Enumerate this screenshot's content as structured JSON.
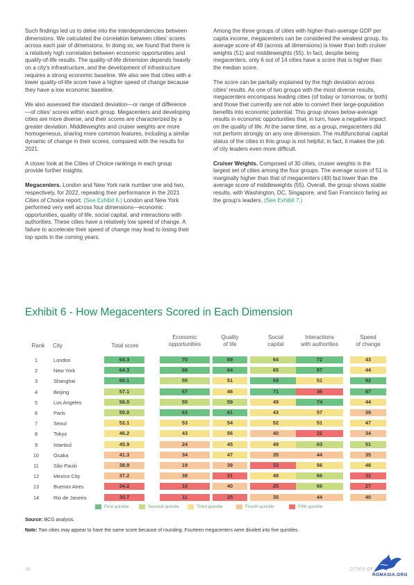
{
  "left_column": [
    {
      "lead": "",
      "text": "Such findings led us to delve into the interdependencies between dimensions. We calculated the correlation between cities' scores across each pair of dimensions. In doing so, we found that there is a relatively high correlation between economic opportunities and quality-of-life results. The quality-of-life dimension depends heavily on a city's infrastructure, and the development of infrastructure requires a strong economic baseline. We also see that cities with a lower quality-of-life score have a higher speed of change because they have a low economic baseline."
    },
    {
      "lead": "",
      "text": "We also assessed the standard deviation—or range of difference—of cities' scores within each group. Megacenters and developing cities are more diverse, and their scores are characterized by a greater deviation. Middleweights and cruiser weights are more homogeneous, sharing more common features, including a similar dynamic of change in their scores, compared with the results for 2021."
    },
    {
      "lead": "",
      "text": "A closer look at the Cities of Choice rankings in each group provide further insights."
    },
    {
      "lead": "Megacenters.",
      "pre": " London and New York rank number one and two, respectively, for 2022, repeating their performance in the 2021 ",
      "italic": "Cities of Choice",
      "mid": " report. ",
      "link": "(See Exhibit 6.)",
      "post": " London and New York performed very well across four dimensions—economic opportunities, quality of life, social capital, and interactions with authorities. These cities have a relatively low speed of change. A failure to accelerate their speed of change may lead to losing their top spots in the coming years."
    }
  ],
  "right_column": [
    {
      "text": "Among the three groups of cities with higher-than-average GDP per capita income, megacenters can be considered the weakest group. Its average score of 49 (across all dimensions) is lower than both cruiser weights (51) and middleweights (55). In fact, despite being megacenters, only 6 out of 14 cities have a score that is higher than the median score."
    },
    {
      "text": "The score can be partially explained by the high deviation across cities' results. As one of two groups with the most diverse results, megacenters encompass leading cities (of today or tomorrow, or both) and those that currently are not able to convert their large-population benefits into economic potential. This group shows below-average results in economic opportunities that, in turn, have a negative impact on the quality of life. At the same time, as a group, megacenters did not perform strongly on any one dimension. The multifunctional capital status of the cities in this group is not helpful; in fact, it makes the job of city leaders even more difficult."
    },
    {
      "lead": "Cruiser Weights.",
      "pre": " Composed of 30 cities, cruiser weights is the largest set of cities among the four groups. The average score of 51 is marginally higher than that of megacenters (49) but lower than the average score of middleweights (55). Overall, the group shows stable results, with Washington, DC, Singapore, and San Francisco faring as the group's leaders. ",
      "link": "(See Exhibit 7.)"
    }
  ],
  "exhibit": {
    "title": "Exhibit 6 - How Megacenters Scored in Each Dimension",
    "headers": {
      "rank": "Rank",
      "city": "City",
      "total": "Total score",
      "econ": "Economic\nopportunities",
      "qol": "Quality\nof life",
      "social": "Social\ncapital",
      "inter": "Interactions\nwith authorities",
      "speed": "Speed\nof change"
    },
    "colors": {
      "first": "#6cc283",
      "second": "#c8dc84",
      "third": "#f7e28c",
      "fourth": "#f7c79b",
      "fifth": "#ef6f6f"
    },
    "rows": [
      {
        "rank": "1",
        "city": "London",
        "total": [
          "64.3",
          "first"
        ],
        "econ": [
          "70",
          "first"
        ],
        "qol": [
          "69",
          "first"
        ],
        "social": [
          "64",
          "second"
        ],
        "inter": [
          "72",
          "first"
        ],
        "speed": [
          "43",
          "third"
        ]
      },
      {
        "rank": "2",
        "city": "New York",
        "total": [
          "64.3",
          "first"
        ],
        "econ": [
          "68",
          "first"
        ],
        "qol": [
          "64",
          "first"
        ],
        "social": [
          "65",
          "second"
        ],
        "inter": [
          "97",
          "first"
        ],
        "speed": [
          "44",
          "third"
        ]
      },
      {
        "rank": "3",
        "city": "Shanghai",
        "total": [
          "60.1",
          "first"
        ],
        "econ": [
          "55",
          "second"
        ],
        "qol": [
          "51",
          "third"
        ],
        "social": [
          "69",
          "first"
        ],
        "inter": [
          "51",
          "third"
        ],
        "speed": [
          "92",
          "first"
        ]
      },
      {
        "rank": "4",
        "city": "Beijing",
        "total": [
          "57.1",
          "second"
        ],
        "econ": [
          "67",
          "first"
        ],
        "qol": [
          "46",
          "third"
        ],
        "social": [
          "71",
          "first"
        ],
        "inter": [
          "36",
          "fifth"
        ],
        "speed": [
          "87",
          "first"
        ]
      },
      {
        "rank": "5",
        "city": "Los Angeles",
        "total": [
          "56.0",
          "second"
        ],
        "econ": [
          "55",
          "second"
        ],
        "qol": [
          "59",
          "second"
        ],
        "social": [
          "49",
          "third"
        ],
        "inter": [
          "74",
          "first"
        ],
        "speed": [
          "44",
          "third"
        ]
      },
      {
        "rank": "6",
        "city": "Paris",
        "total": [
          "55.0",
          "second"
        ],
        "econ": [
          "63",
          "first"
        ],
        "qol": [
          "61",
          "first"
        ],
        "social": [
          "43",
          "third"
        ],
        "inter": [
          "57",
          "third"
        ],
        "speed": [
          "39",
          "fourth"
        ]
      },
      {
        "rank": "7",
        "city": "Seoul",
        "total": [
          "52.1",
          "third"
        ],
        "econ": [
          "53",
          "third"
        ],
        "qol": [
          "54",
          "third"
        ],
        "social": [
          "52",
          "third"
        ],
        "inter": [
          "51",
          "third"
        ],
        "speed": [
          "47",
          "third"
        ]
      },
      {
        "rank": "8",
        "city": "Tokyo",
        "total": [
          "46.2",
          "third"
        ],
        "econ": [
          "43",
          "third"
        ],
        "qol": [
          "56",
          "third"
        ],
        "social": [
          "40",
          "fourth"
        ],
        "inter": [
          "22",
          "fifth"
        ],
        "speed": [
          "34",
          "fourth"
        ]
      },
      {
        "rank": "9",
        "city": "Istanbul",
        "total": [
          "45.9",
          "third"
        ],
        "econ": [
          "24",
          "fourth"
        ],
        "qol": [
          "45",
          "third"
        ],
        "social": [
          "49",
          "third"
        ],
        "inter": [
          "63",
          "second"
        ],
        "speed": [
          "51",
          "second"
        ]
      },
      {
        "rank": "10",
        "city": "Osaka",
        "total": [
          "41.3",
          "fourth"
        ],
        "econ": [
          "34",
          "fourth"
        ],
        "qol": [
          "47",
          "third"
        ],
        "social": [
          "35",
          "fourth"
        ],
        "inter": [
          "44",
          "fourth"
        ],
        "speed": [
          "35",
          "fourth"
        ]
      },
      {
        "rank": "11",
        "city": "São Paulo",
        "total": [
          "38.9",
          "fourth"
        ],
        "econ": [
          "19",
          "fourth"
        ],
        "qol": [
          "39",
          "fourth"
        ],
        "social": [
          "33",
          "fifth"
        ],
        "inter": [
          "56",
          "third"
        ],
        "speed": [
          "48",
          "third"
        ]
      },
      {
        "rank": "12",
        "city": "Mexico City",
        "total": [
          "37.2",
          "fourth"
        ],
        "econ": [
          "38",
          "fourth"
        ],
        "qol": [
          "31",
          "fifth"
        ],
        "social": [
          "48",
          "third"
        ],
        "inter": [
          "66",
          "second"
        ],
        "speed": [
          "32",
          "fifth"
        ]
      },
      {
        "rank": "13",
        "city": "Buenos Aires",
        "total": [
          "34.2",
          "fifth"
        ],
        "econ": [
          "10",
          "fifth"
        ],
        "qol": [
          "40",
          "fourth"
        ],
        "social": [
          "25",
          "fifth"
        ],
        "inter": [
          "66",
          "second"
        ],
        "speed": [
          "27",
          "fifth"
        ]
      },
      {
        "rank": "14",
        "city": "Rio de Janeiro",
        "total": [
          "30.7",
          "fifth"
        ],
        "econ": [
          "11",
          "fifth"
        ],
        "qol": [
          "25",
          "fifth"
        ],
        "social": [
          "35",
          "fourth"
        ],
        "inter": [
          "44",
          "fourth"
        ],
        "speed": [
          "40",
          "fourth"
        ]
      }
    ],
    "legend": [
      {
        "key": "first",
        "label": "First quintile"
      },
      {
        "key": "second",
        "label": "Second quintile"
      },
      {
        "key": "third",
        "label": "Third quintile"
      },
      {
        "key": "fourth",
        "label": "Fourth quintile"
      },
      {
        "key": "fifth",
        "label": "Fifth quintile"
      }
    ]
  },
  "source": {
    "label": "Source:",
    "text": " BCG analysis."
  },
  "note": {
    "label": "Note:",
    "text": " Two cities may appear to have the same score because of rounding. Fourteen megacenters were divided into five quintiles."
  },
  "footer": {
    "page_number": "16",
    "title": "CITIES OF C"
  },
  "watermark": {
    "text": "ROMASIA.ORG",
    "icon": "dragon-logo-icon"
  }
}
